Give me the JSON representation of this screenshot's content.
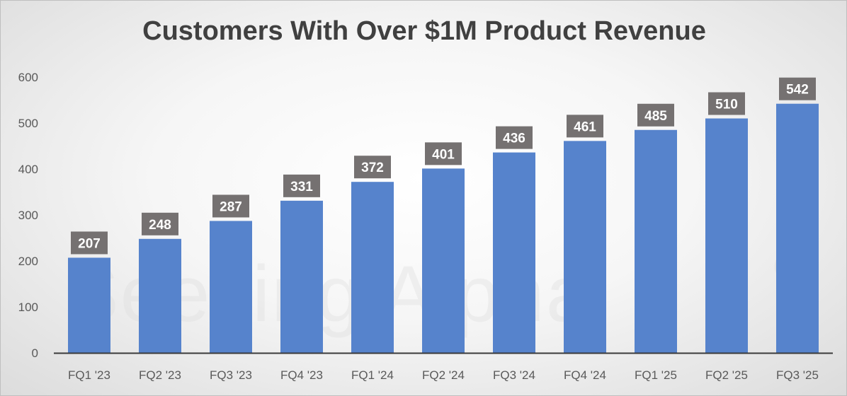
{
  "chart_data": {
    "type": "bar",
    "title": "Customers With Over $1M Product Revenue",
    "xlabel": "",
    "ylabel": "",
    "categories": [
      "FQ1 '23",
      "FQ2 '23",
      "FQ3 '23",
      "FQ4 '23",
      "FQ1 '24",
      "FQ2 '24",
      "FQ3 '24",
      "FQ4 '24",
      "FQ1 '25",
      "FQ2 '25",
      "FQ3 '25"
    ],
    "values": [
      207,
      248,
      287,
      331,
      372,
      401,
      436,
      461,
      485,
      510,
      542
    ],
    "ylim": [
      0,
      600
    ],
    "yticks": [
      0,
      100,
      200,
      300,
      400,
      500,
      600
    ],
    "grid": false,
    "legend": "none",
    "data_labels": true,
    "colors": {
      "bar": "#5683cc",
      "label_bg": "#757171",
      "label_text": "#ffffff"
    }
  },
  "watermark": {
    "text": "Seeking Alpha",
    "mark": "α"
  }
}
